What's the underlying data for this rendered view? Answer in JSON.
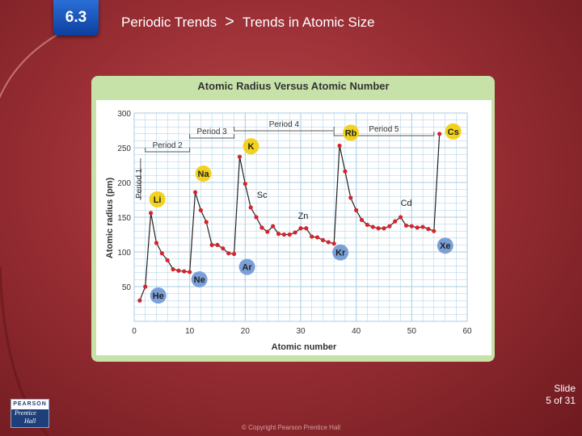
{
  "slide": {
    "section_number": "6.3",
    "breadcrumb_chapter": "Periodic Trends",
    "breadcrumb_separator": ">",
    "breadcrumb_topic": "Trends in Atomic Size",
    "slide_label": "Slide",
    "slide_position": "5 of 31",
    "copyright": "© Copyright Pearson Prentice Hall",
    "logo_top": "PEARSON",
    "logo_bottom_1": "Prentice",
    "logo_bottom_2": "Hall"
  },
  "colors": {
    "panel_green": "#c7e2a8",
    "point_red": "#d8232a",
    "alkali_badge": "#f3d21d",
    "noble_badge": "#7ba0d8",
    "grid": "#a7cde3"
  },
  "chart_data": {
    "type": "line",
    "title": "Atomic Radius Versus Atomic Number",
    "xlabel": "Atomic number",
    "ylabel": "Atomic radius (pm)",
    "xlim": [
      0,
      60
    ],
    "ylim": [
      0,
      300
    ],
    "xticks": [
      0,
      10,
      20,
      30,
      40,
      50,
      60
    ],
    "yticks": [
      50,
      100,
      150,
      200,
      250,
      300
    ],
    "grid": true,
    "series": [
      {
        "x": [
          1,
          2,
          3,
          4,
          5,
          6,
          7,
          8,
          9,
          10,
          11,
          12,
          13,
          14,
          15,
          16,
          17,
          18,
          19,
          20,
          21,
          22,
          23,
          24,
          25,
          26,
          27,
          28,
          29,
          30,
          31,
          32,
          33,
          34,
          35,
          36,
          37,
          38,
          39,
          40,
          41,
          42,
          43,
          44,
          45,
          46,
          47,
          48,
          49,
          50,
          51,
          52,
          53,
          54,
          55
        ],
        "values": [
          30,
          50,
          156,
          113,
          98,
          88,
          75,
          73,
          72,
          71,
          186,
          160,
          143,
          110,
          110,
          105,
          98,
          97,
          237,
          198,
          164,
          150,
          135,
          129,
          137,
          126,
          125,
          125,
          128,
          134,
          134,
          122,
          121,
          117,
          114,
          112,
          253,
          216,
          178,
          160,
          146,
          139,
          136,
          134,
          134,
          137,
          144,
          150,
          138,
          137,
          135,
          136,
          133,
          130,
          270
        ]
      }
    ],
    "period_brackets": [
      {
        "label": "Period 1",
        "start": 1,
        "end": 2
      },
      {
        "label": "Period 2",
        "start": 2,
        "end": 10
      },
      {
        "label": "Period 3",
        "start": 10,
        "end": 18
      },
      {
        "label": "Period 4",
        "start": 18,
        "end": 36
      },
      {
        "label": "Period 5",
        "start": 36,
        "end": 54
      }
    ],
    "element_labels": [
      {
        "symbol": "Li",
        "x": 3,
        "kind": "alkali"
      },
      {
        "symbol": "Na",
        "x": 11,
        "kind": "alkali"
      },
      {
        "symbol": "K",
        "x": 19,
        "kind": "alkali"
      },
      {
        "symbol": "Rb",
        "x": 37,
        "kind": "alkali"
      },
      {
        "symbol": "Cs",
        "x": 55,
        "kind": "alkali"
      },
      {
        "symbol": "He",
        "x": 2,
        "kind": "noble"
      },
      {
        "symbol": "Ne",
        "x": 10,
        "kind": "noble"
      },
      {
        "symbol": "Ar",
        "x": 18,
        "kind": "noble"
      },
      {
        "symbol": "Kr",
        "x": 36,
        "kind": "noble"
      },
      {
        "symbol": "Xe",
        "x": 54,
        "kind": "noble"
      },
      {
        "symbol": "Sc",
        "x": 21,
        "kind": "plain"
      },
      {
        "symbol": "Zn",
        "x": 30,
        "kind": "plain"
      },
      {
        "symbol": "Cd",
        "x": 48,
        "kind": "plain"
      }
    ]
  }
}
